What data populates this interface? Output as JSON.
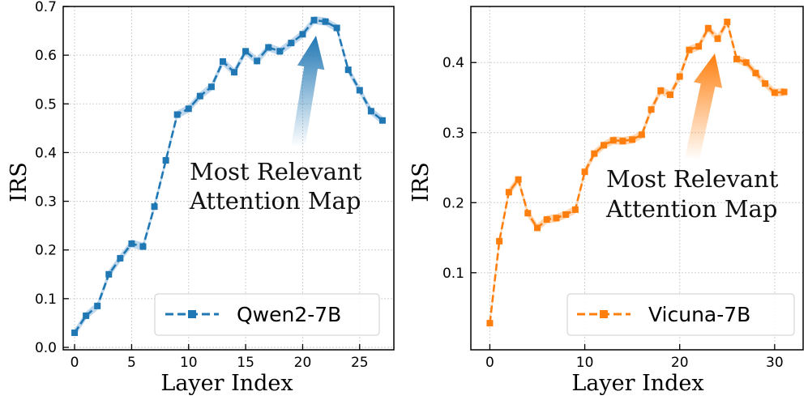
{
  "chart_data": [
    {
      "type": "line",
      "xlabel": "Layer Index",
      "ylabel": "IRS",
      "xlim": [
        -1,
        28
      ],
      "ylim": [
        -0.005,
        0.7
      ],
      "xticks": [
        0,
        5,
        10,
        15,
        20,
        25
      ],
      "yticks": [
        0.0,
        0.1,
        0.2,
        0.3,
        0.4,
        0.5,
        0.6,
        0.7
      ],
      "ytick_labels": [
        "0.0",
        "0.1",
        "0.2",
        "0.3",
        "0.4",
        "0.5",
        "0.6",
        "0.7"
      ],
      "grid": true,
      "legend_position": "bottom-right",
      "color": "#1f77b4",
      "band_color": "#a9c9e6",
      "series": [
        {
          "name": "Qwen2-7B",
          "x": [
            0,
            1,
            2,
            3,
            4,
            5,
            6,
            7,
            8,
            9,
            10,
            11,
            12,
            13,
            14,
            15,
            16,
            17,
            18,
            19,
            20,
            21,
            22,
            23,
            24,
            25,
            26,
            27
          ],
          "values": [
            0.03,
            0.065,
            0.085,
            0.15,
            0.183,
            0.213,
            0.207,
            0.289,
            0.384,
            0.478,
            0.49,
            0.516,
            0.535,
            0.587,
            0.565,
            0.608,
            0.588,
            0.616,
            0.608,
            0.625,
            0.643,
            0.672,
            0.669,
            0.656,
            0.57,
            0.528,
            0.485,
            0.466
          ]
        }
      ],
      "annotation": {
        "lines": [
          "Most Relevant",
          "Attention Map"
        ]
      }
    },
    {
      "type": "line",
      "xlabel": "Layer Index",
      "ylabel": "IRS",
      "xlim": [
        -2,
        33
      ],
      "ylim": [
        -0.01,
        0.48
      ],
      "xticks": [
        0,
        10,
        20,
        30
      ],
      "yticks": [
        0.1,
        0.2,
        0.3,
        0.4
      ],
      "ytick_labels": [
        "0.1",
        "0.2",
        "0.3",
        "0.4"
      ],
      "grid": true,
      "legend_position": "bottom-right",
      "color": "#ff7f0e",
      "band_color": "#fdc99a",
      "series": [
        {
          "name": "Vicuna-7B",
          "x": [
            0,
            1,
            2,
            3,
            4,
            5,
            6,
            7,
            8,
            9,
            10,
            11,
            12,
            13,
            14,
            15,
            16,
            17,
            18,
            19,
            20,
            21,
            22,
            23,
            24,
            25,
            26,
            27,
            28,
            29,
            30,
            31
          ],
          "values": [
            0.028,
            0.145,
            0.215,
            0.233,
            0.185,
            0.164,
            0.176,
            0.178,
            0.183,
            0.19,
            0.244,
            0.27,
            0.282,
            0.289,
            0.288,
            0.29,
            0.297,
            0.333,
            0.36,
            0.354,
            0.38,
            0.418,
            0.423,
            0.449,
            0.434,
            0.458,
            0.405,
            0.4,
            0.385,
            0.37,
            0.357,
            0.358
          ]
        }
      ],
      "annotation": {
        "lines": [
          "Most Relevant",
          "Attention Map"
        ]
      }
    }
  ]
}
